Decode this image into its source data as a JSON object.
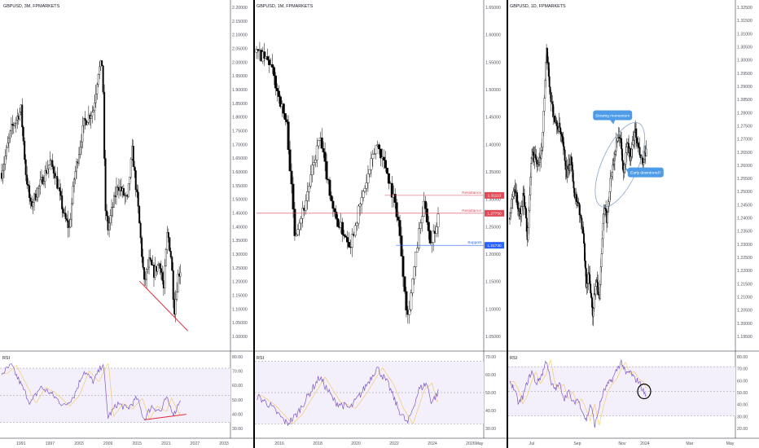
{
  "colors": {
    "bull": "#ffffff",
    "bear": "#000000",
    "wick": "#000000",
    "resistance": "#e04a55",
    "support": "#2962ff",
    "rsi": "#7e57c2",
    "rsi_ma": "#f5c96a",
    "rsi_band": "#f3f0fb",
    "divergence": "#e0293a",
    "callout": "#4e9ce8",
    "ellipse": "#8aa4c8",
    "axis_text": "#50535e"
  },
  "chart_data": [
    {
      "type": "candlestick",
      "title": "GBPUSD, 3M, FPMARKETS",
      "x_ticks": [
        "1991",
        "1997",
        "2003",
        "2009",
        "2015",
        "2021",
        "2027",
        "2033"
      ],
      "price_ticks": [
        "2.20000",
        "2.15000",
        "2.10000",
        "2.05000",
        "2.00000",
        "1.95000",
        "1.90000",
        "1.85000",
        "1.80000",
        "1.75000",
        "1.70000",
        "1.65000",
        "1.60000",
        "1.55000",
        "1.50000",
        "1.45000",
        "1.40000",
        "1.35000",
        "1.30000",
        "1.25000",
        "1.20000",
        "1.15000",
        "1.10000",
        "1.05000",
        "1.00000"
      ],
      "ylim": [
        0.98,
        2.21
      ],
      "path_years": [
        1987,
        1989,
        1991,
        1992,
        1993,
        1995,
        1997,
        1998,
        2000,
        2001,
        2002,
        2004,
        2006,
        2007,
        2007.9,
        2008.4,
        2009,
        2011,
        2013,
        2014,
        2015.2,
        2016.5,
        2017.5,
        2018.5,
        2019.7,
        2020.5,
        2021.3,
        2022.1,
        2022.7,
        2023.5,
        2024
      ],
      "path_close": [
        1.62,
        1.78,
        1.85,
        1.62,
        1.5,
        1.58,
        1.66,
        1.62,
        1.46,
        1.42,
        1.6,
        1.8,
        1.85,
        1.99,
        2.02,
        1.5,
        1.42,
        1.58,
        1.52,
        1.7,
        1.5,
        1.22,
        1.3,
        1.26,
        1.3,
        1.2,
        1.41,
        1.31,
        1.12,
        1.25,
        1.27
      ],
      "rsi_ticks": [
        "80.00",
        "70.00",
        "60.00",
        "50.00",
        "40.00",
        "30.00"
      ],
      "rsi_ylim": [
        22,
        82
      ],
      "rsi_band": [
        30,
        70
      ],
      "rsi_x": [
        1987,
        1989,
        1991,
        1993,
        1995,
        1997,
        2000,
        2002,
        2004,
        2006,
        2008,
        2009,
        2011,
        2013,
        2015,
        2016.5,
        2018,
        2020,
        2021,
        2022.7,
        2024
      ],
      "rsi_values": [
        66,
        72,
        58,
        44,
        56,
        52,
        42,
        50,
        68,
        60,
        74,
        34,
        44,
        40,
        48,
        32,
        42,
        38,
        48,
        36,
        48
      ],
      "rsi_title": "RSI",
      "trendline_years": [
        2015.5,
        2025.5
      ],
      "trendline_prices": [
        1.23,
        1.05
      ],
      "rsi_divergence_years": [
        2016.5,
        2025.2
      ],
      "rsi_divergence_values": [
        32,
        36
      ]
    },
    {
      "type": "candlestick",
      "title": "GBPUSD, 1M, FPMARKETS",
      "x_ticks": [
        "2016",
        "2018",
        "2020",
        "2022",
        "2024",
        "2026",
        "May"
      ],
      "price_ticks": [
        "1.65000",
        "1.60000",
        "1.55000",
        "1.50000",
        "1.45000",
        "1.40000",
        "1.35000",
        "1.30000",
        "1.25000",
        "1.20000",
        "1.15000",
        "1.10000",
        "1.05000"
      ],
      "ylim": [
        1.02,
        1.66
      ],
      "path_years": [
        2014.8,
        2015.5,
        2016.4,
        2016.8,
        2017.3,
        2018.1,
        2018.9,
        2019.7,
        2020.2,
        2021.1,
        2021.6,
        2022.2,
        2022.7,
        2023.3,
        2023.6,
        2023.9,
        2024.3
      ],
      "path_close": [
        1.58,
        1.56,
        1.44,
        1.24,
        1.29,
        1.42,
        1.27,
        1.22,
        1.29,
        1.41,
        1.36,
        1.27,
        1.08,
        1.24,
        1.3,
        1.22,
        1.27
      ],
      "levels": [
        {
          "label": "Resistance",
          "price": "1.31113",
          "value": 1.3111,
          "color": "resistance",
          "from_year": 2021.5
        },
        {
          "label": "Resistance",
          "price": "1.27750",
          "value": 1.2775,
          "color": "resistance",
          "from_year": 2014.8
        },
        {
          "label": "Support",
          "price": "1.21730",
          "value": 1.2173,
          "color": "support",
          "from_year": 2022.1
        }
      ],
      "rsi_ticks": [
        "70.00",
        "60.00",
        "50.00",
        "40.00",
        "30.00"
      ],
      "rsi_ylim": [
        24,
        76
      ],
      "rsi_band": [
        30,
        70
      ],
      "rsi_x": [
        2014.8,
        2015.5,
        2016.4,
        2016.9,
        2017.5,
        2018.1,
        2018.9,
        2019.7,
        2020.3,
        2021.1,
        2021.7,
        2022.2,
        2022.7,
        2023.3,
        2023.7,
        2023.95,
        2024.3
      ],
      "rsi_values": [
        48,
        42,
        30,
        36,
        48,
        60,
        44,
        40,
        50,
        66,
        55,
        40,
        30,
        52,
        56,
        44,
        50
      ],
      "rsi_title": "RSI"
    },
    {
      "type": "candlestick",
      "title": "GBPUSD, 1D, FPMARKETS",
      "x_ticks": [
        "Jul",
        "Sep",
        "Nov",
        "2024",
        "Mar",
        "May"
      ],
      "price_ticks": [
        "1.32500",
        "1.31500",
        "1.31000",
        "1.30500",
        "1.30000",
        "1.29500",
        "1.29000",
        "1.28500",
        "1.28000",
        "1.27500",
        "1.27000",
        "1.26500",
        "1.26000",
        "1.25500",
        "1.25000",
        "1.24500",
        "1.24000",
        "1.23500",
        "1.23000",
        "1.22500",
        "1.22000",
        "1.21500",
        "1.21000",
        "1.20500",
        "1.20000",
        "1.19500"
      ],
      "ylim": [
        1.193,
        1.327
      ],
      "path_days": [
        0,
        6,
        14,
        19,
        24,
        30,
        36,
        40,
        44,
        50,
        56,
        62,
        68,
        73,
        78,
        84,
        88,
        94,
        100,
        104,
        108,
        113,
        118,
        122,
        128,
        132,
        138,
        144,
        150,
        155,
        160,
        165,
        170,
        175,
        181,
        186
      ],
      "path_close": [
        1.245,
        1.258,
        1.245,
        1.255,
        1.238,
        1.27,
        1.268,
        1.265,
        1.275,
        1.31,
        1.292,
        1.282,
        1.28,
        1.272,
        1.262,
        1.268,
        1.255,
        1.25,
        1.238,
        1.22,
        1.222,
        1.208,
        1.222,
        1.212,
        1.248,
        1.245,
        1.262,
        1.272,
        1.278,
        1.262,
        1.275,
        1.268,
        1.28,
        1.272,
        1.266,
        1.27
      ],
      "annotations": [
        {
          "text": "Slowing momentum",
          "day": 140,
          "price": 1.2855
        },
        {
          "text": "Early downtrend?",
          "day": 185,
          "price": 1.263
        }
      ],
      "rsi_ticks": [
        "80.00",
        "70.00",
        "60.00",
        "50.00",
        "40.00",
        "30.00",
        "20.00"
      ],
      "rsi_ylim": [
        16,
        82
      ],
      "rsi_band": [
        30,
        70
      ],
      "rsi_x": [
        0,
        6,
        12,
        18,
        24,
        30,
        36,
        44,
        50,
        56,
        62,
        68,
        74,
        80,
        86,
        92,
        98,
        104,
        110,
        116,
        122,
        128,
        134,
        140,
        146,
        152,
        158,
        164,
        170,
        176,
        182,
        186
      ],
      "rsi_values": [
        58,
        52,
        40,
        46,
        58,
        66,
        56,
        64,
        76,
        56,
        52,
        56,
        44,
        50,
        40,
        44,
        36,
        26,
        40,
        22,
        38,
        50,
        56,
        60,
        68,
        74,
        64,
        66,
        60,
        58,
        50,
        46
      ],
      "rsi_title": "RSI"
    }
  ]
}
